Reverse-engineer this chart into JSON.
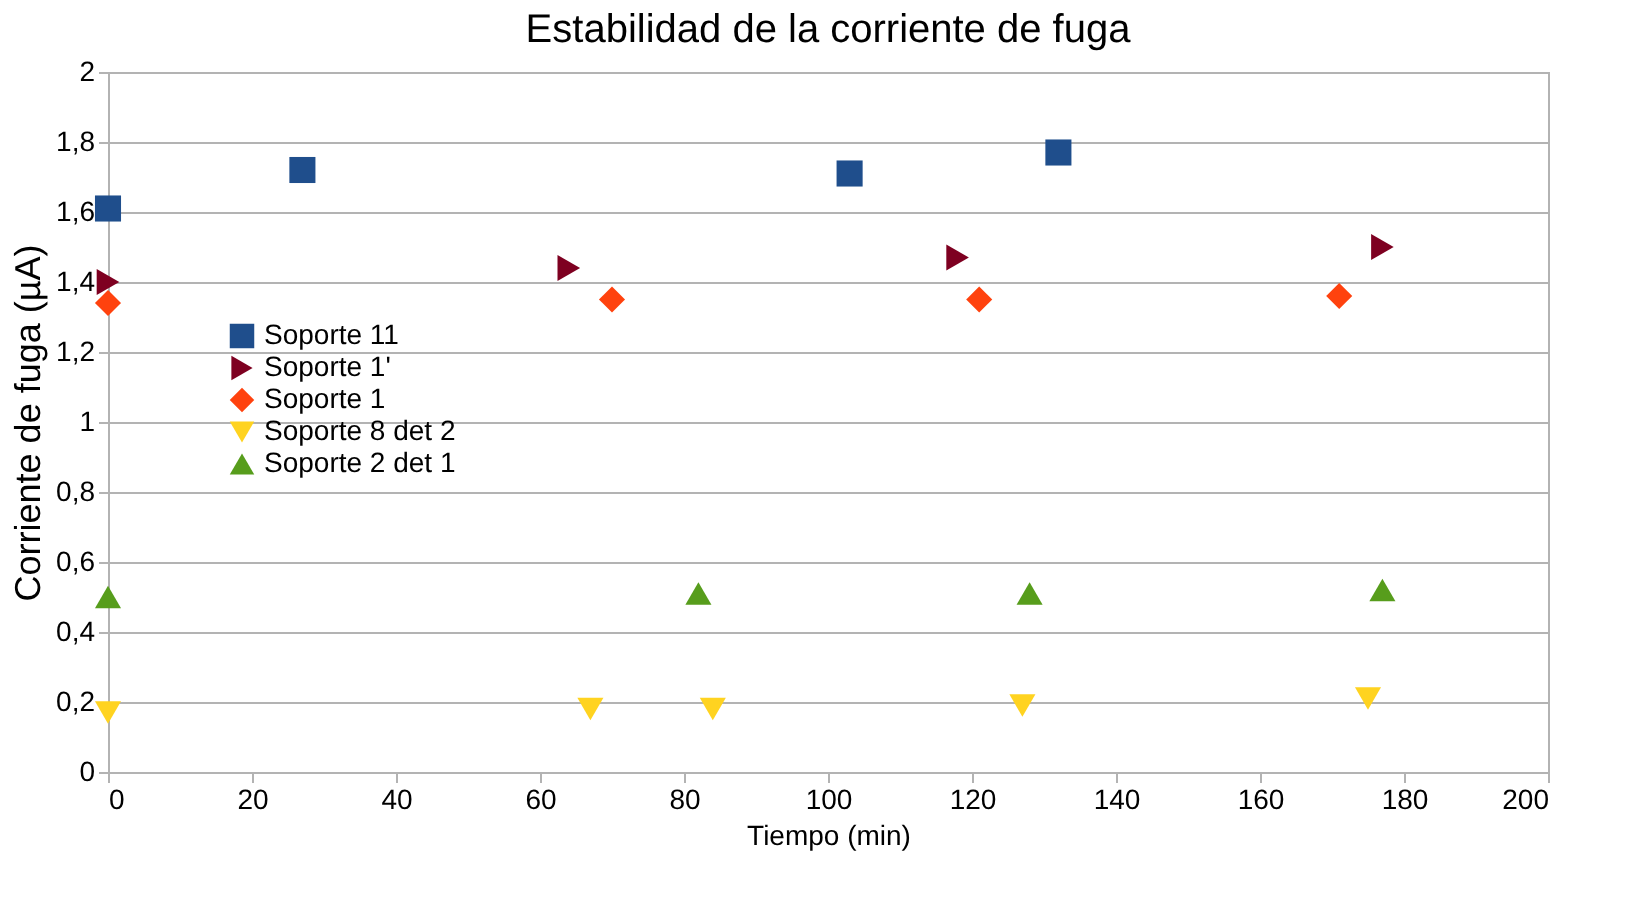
{
  "chart_data": {
    "type": "scatter",
    "title": "Estabilidad de la corriente de fuga",
    "xlabel": "Tiempo (min)",
    "ylabel": "Corriente de fuga (µA)",
    "series": [
      {
        "name": "Soporte 11",
        "color": "#1f4e8c",
        "marker": "square",
        "x": [
          0,
          27,
          103,
          132
        ],
        "values": [
          1.61,
          1.72,
          1.71,
          1.77
        ]
      },
      {
        "name": "Soporte 1'",
        "color": "#7e0021",
        "marker": "triangle-right",
        "x": [
          0,
          64,
          118,
          177
        ],
        "values": [
          1.4,
          1.44,
          1.47,
          1.5
        ]
      },
      {
        "name": "Soporte 1",
        "color": "#ff420e",
        "marker": "diamond",
        "x": [
          0,
          70,
          121,
          171
        ],
        "values": [
          1.34,
          1.35,
          1.35,
          1.36
        ]
      },
      {
        "name": "Soporte 8 det 2",
        "color": "#ffd320",
        "marker": "triangle-down",
        "x": [
          0,
          67,
          84,
          127,
          175
        ],
        "values": [
          0.17,
          0.18,
          0.18,
          0.19,
          0.21
        ]
      },
      {
        "name": "Soporte 2 det 1",
        "color": "#579d1c",
        "marker": "triangle-up",
        "x": [
          0,
          82,
          128,
          177
        ],
        "values": [
          0.5,
          0.51,
          0.51,
          0.52
        ]
      }
    ],
    "xlim": [
      0,
      200
    ],
    "xticks": [
      0,
      20,
      40,
      60,
      80,
      100,
      120,
      140,
      160,
      180,
      200
    ],
    "ylim": [
      0,
      2
    ],
    "yticks": [
      0,
      {
        "value": 0.2,
        "label": "0,2"
      },
      {
        "value": 0.4,
        "label": "0,4"
      },
      {
        "value": 0.6,
        "label": "0,6"
      },
      {
        "value": 0.8,
        "label": "0,8"
      },
      1,
      {
        "value": 1.2,
        "label": "1,2"
      },
      {
        "value": 1.4,
        "label": "1,4"
      },
      {
        "value": 1.6,
        "label": "1,6"
      },
      {
        "value": 1.8,
        "label": "1,8"
      },
      2
    ],
    "grid": "y",
    "legend": "left"
  }
}
